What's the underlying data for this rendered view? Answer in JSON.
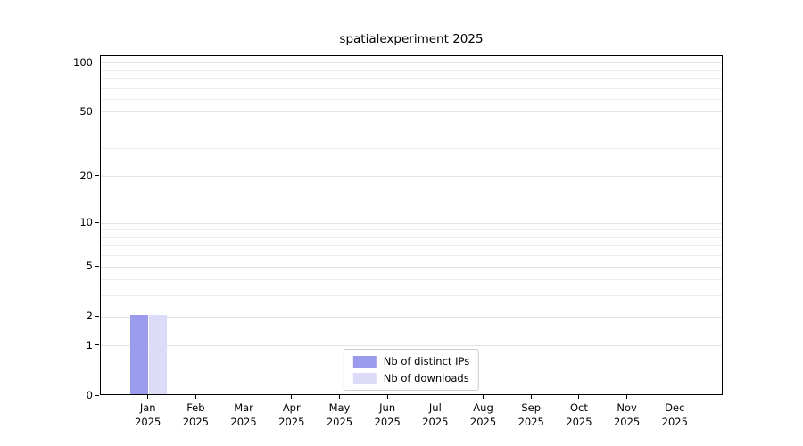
{
  "chart_data": {
    "type": "bar",
    "title": "spatialexperiment 2025",
    "scale": "log1p",
    "ylim": [
      0,
      110
    ],
    "yticks": [
      0,
      1,
      2,
      5,
      10,
      20,
      50,
      100
    ],
    "minor_grid_values": [
      1,
      2,
      3,
      4,
      5,
      6,
      7,
      8,
      9,
      10,
      20,
      30,
      40,
      50,
      60,
      70,
      80,
      90,
      100
    ],
    "months": [
      "Jan",
      "Feb",
      "Mar",
      "Apr",
      "May",
      "Jun",
      "Jul",
      "Aug",
      "Sep",
      "Oct",
      "Nov",
      "Dec"
    ],
    "year_label": "2025",
    "series": [
      {
        "name": "Nb of distinct IPs",
        "color": "#9b9bee",
        "values": [
          2,
          0,
          0,
          0,
          0,
          0,
          0,
          0,
          0,
          0,
          0,
          0
        ]
      },
      {
        "name": "Nb of downloads",
        "color": "#dcdcf8",
        "values": [
          2,
          0,
          0,
          0,
          0,
          0,
          0,
          0,
          0,
          0,
          0,
          0
        ]
      }
    ],
    "legend_position": "lower center",
    "grid": "horizontal"
  }
}
